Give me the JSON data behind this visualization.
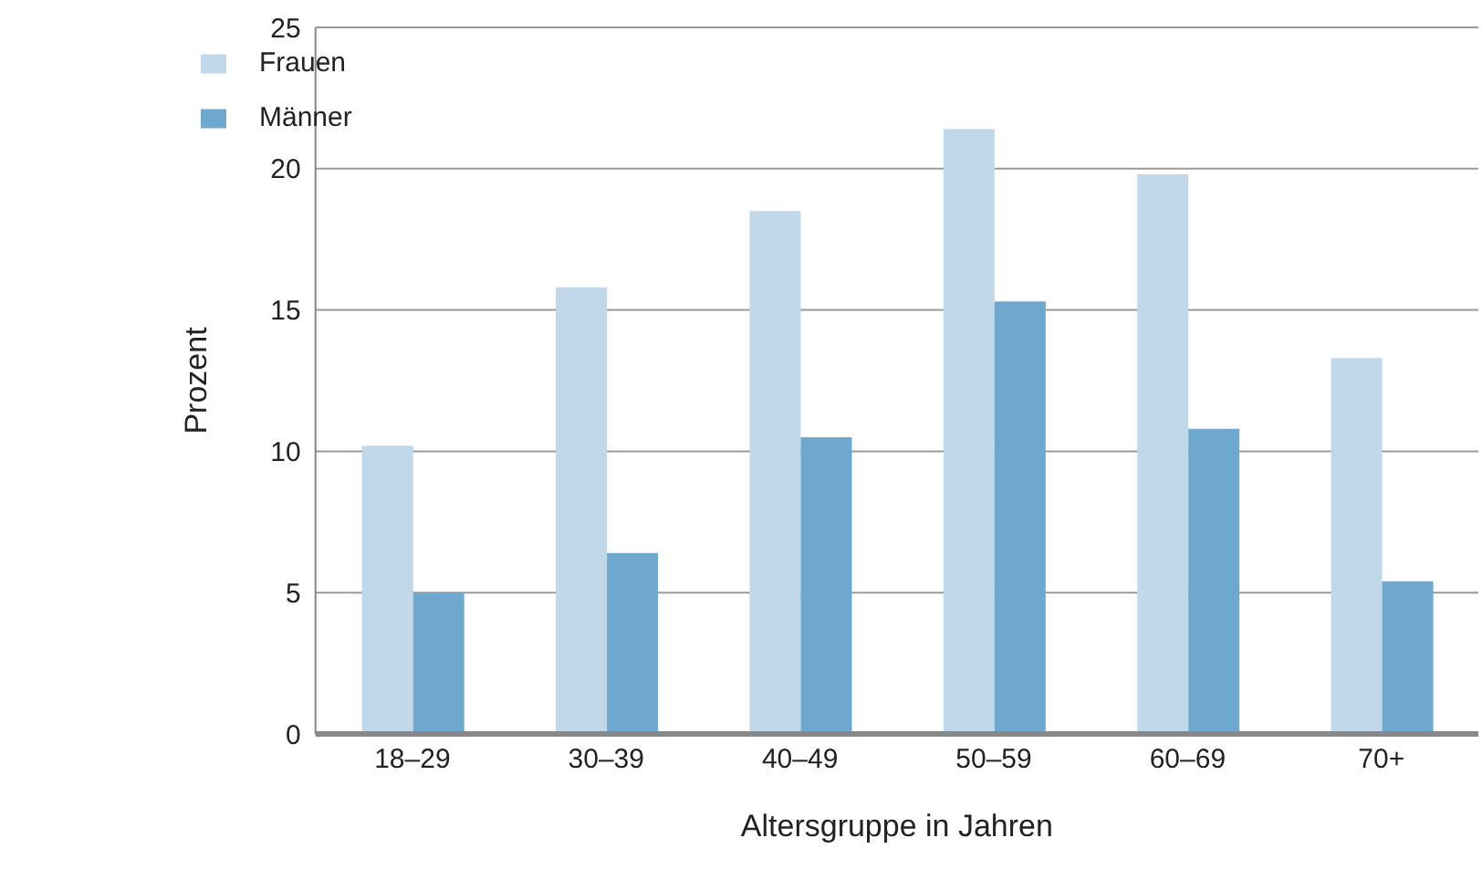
{
  "chart_data": {
    "type": "bar",
    "xlabel": "Altersgruppe in Jahren",
    "ylabel": "Prozent",
    "categories": [
      "18–29",
      "30–39",
      "40–49",
      "50–59",
      "60–69",
      "70+"
    ],
    "series": [
      {
        "name": "Frauen",
        "color": "#c0d8ea",
        "values": [
          10.2,
          15.8,
          18.5,
          21.4,
          19.8,
          13.3
        ]
      },
      {
        "name": "Männer",
        "color": "#6ea8cf",
        "values": [
          5.0,
          6.4,
          10.5,
          15.3,
          10.8,
          5.4
        ]
      }
    ],
    "ylim": [
      0,
      25
    ],
    "yticks": [
      0,
      5,
      10,
      15,
      20,
      25
    ],
    "grid": "y",
    "legend": "top left"
  }
}
